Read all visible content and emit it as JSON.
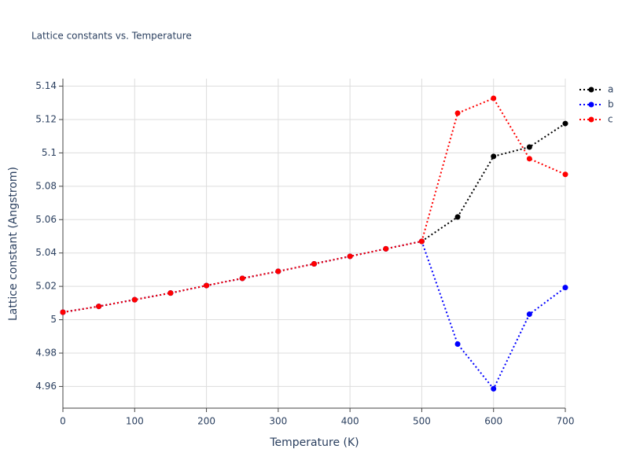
{
  "chart_data": {
    "type": "line",
    "title": "Lattice constants vs. Temperature",
    "x_label": "Temperature (K)",
    "y_label": "Lattice constant (Angstrom)",
    "x": [
      0,
      50,
      100,
      150,
      200,
      250,
      300,
      350,
      400,
      450,
      500,
      550,
      600,
      650,
      700
    ],
    "series": [
      {
        "name": "a",
        "color": "#000000",
        "values": [
          5.0045,
          5.008,
          5.012,
          5.016,
          5.0205,
          5.0248,
          5.029,
          5.0335,
          5.038,
          5.0425,
          5.047,
          5.0616,
          5.0979,
          5.1035,
          5.1176
        ]
      },
      {
        "name": "b",
        "color": "#0000ff",
        "values": [
          5.0045,
          5.008,
          5.012,
          5.016,
          5.0205,
          5.0248,
          5.029,
          5.0335,
          5.038,
          5.0425,
          5.047,
          4.9854,
          4.9586,
          5.0033,
          5.0193
        ]
      },
      {
        "name": "c",
        "color": "#ff0000",
        "values": [
          5.0045,
          5.008,
          5.012,
          5.016,
          5.0205,
          5.0248,
          5.029,
          5.0335,
          5.038,
          5.0425,
          5.047,
          5.1238,
          5.1327,
          5.0965,
          5.0871
        ]
      }
    ],
    "xlim": [
      0,
      700
    ],
    "xticks": [
      0,
      100,
      200,
      300,
      400,
      500,
      600,
      700
    ],
    "ylim": [
      4.947,
      5.1445
    ],
    "yticks": [
      4.96,
      4.98,
      5,
      5.02,
      5.04,
      5.06,
      5.08,
      5.1,
      5.12,
      5.14
    ],
    "grid": true,
    "legend_position": "top-right"
  }
}
